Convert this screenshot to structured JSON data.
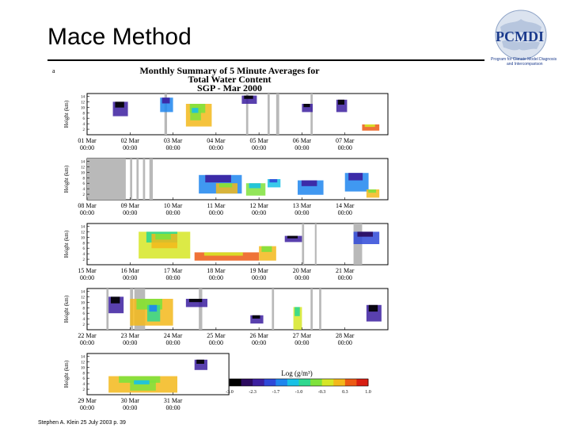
{
  "slide": {
    "title": "Mace Method",
    "footer": "Stephen A. Klein 25 July 2003 p. 39"
  },
  "logo": {
    "text": "PCMDI",
    "subtitle_line1": "Program for Climate Model Diagnosis",
    "subtitle_line2": "and Intercomparison"
  },
  "figure": {
    "panel_letter": "a",
    "title_line1": "Monthly Summary of 5 Minute Averages for",
    "title_line2": "Total Water Content",
    "title_line3": "SGP - Mar 2000",
    "ylabel": "Height (km)",
    "yticks": [
      "2",
      "4",
      "6",
      "8",
      "10",
      "12",
      "14"
    ],
    "rows": [
      {
        "dates": [
          "01 Mar",
          "02 Mar",
          "03 Mar",
          "04 Mar",
          "05 Mar",
          "06 Mar",
          "07 Mar"
        ]
      },
      {
        "dates": [
          "08 Mar",
          "09 Mar",
          "10 Mar",
          "11 Mar",
          "12 Mar",
          "13 Mar",
          "14 Mar"
        ]
      },
      {
        "dates": [
          "15 Mar",
          "16 Mar",
          "17 Mar",
          "18 Mar",
          "19 Mar",
          "20 Mar",
          "21 Mar"
        ]
      },
      {
        "dates": [
          "22 Mar",
          "23 Mar",
          "24 Mar",
          "25 Mar",
          "26 Mar",
          "27 Mar",
          "28 Mar"
        ]
      },
      {
        "dates": [
          "29 Mar",
          "30 Mar",
          "31 Mar"
        ]
      }
    ],
    "time_label": "00:00",
    "colorbar": {
      "label": "Log (g/m³)",
      "ticks": [
        "-3.0",
        "-2.3",
        "-1.7",
        "-1.0",
        "-0.3",
        "0.3",
        "1.0"
      ],
      "colors": [
        "#000000",
        "#2b0a5e",
        "#3c1fa0",
        "#2f49d8",
        "#1f86ee",
        "#18c1e6",
        "#2fd88f",
        "#7fe23c",
        "#d6e626",
        "#f3b81b",
        "#ec5b14",
        "#d81e12"
      ]
    },
    "colors": {
      "data_gap": "#b9b9b9",
      "axis": "#000000"
    }
  }
}
